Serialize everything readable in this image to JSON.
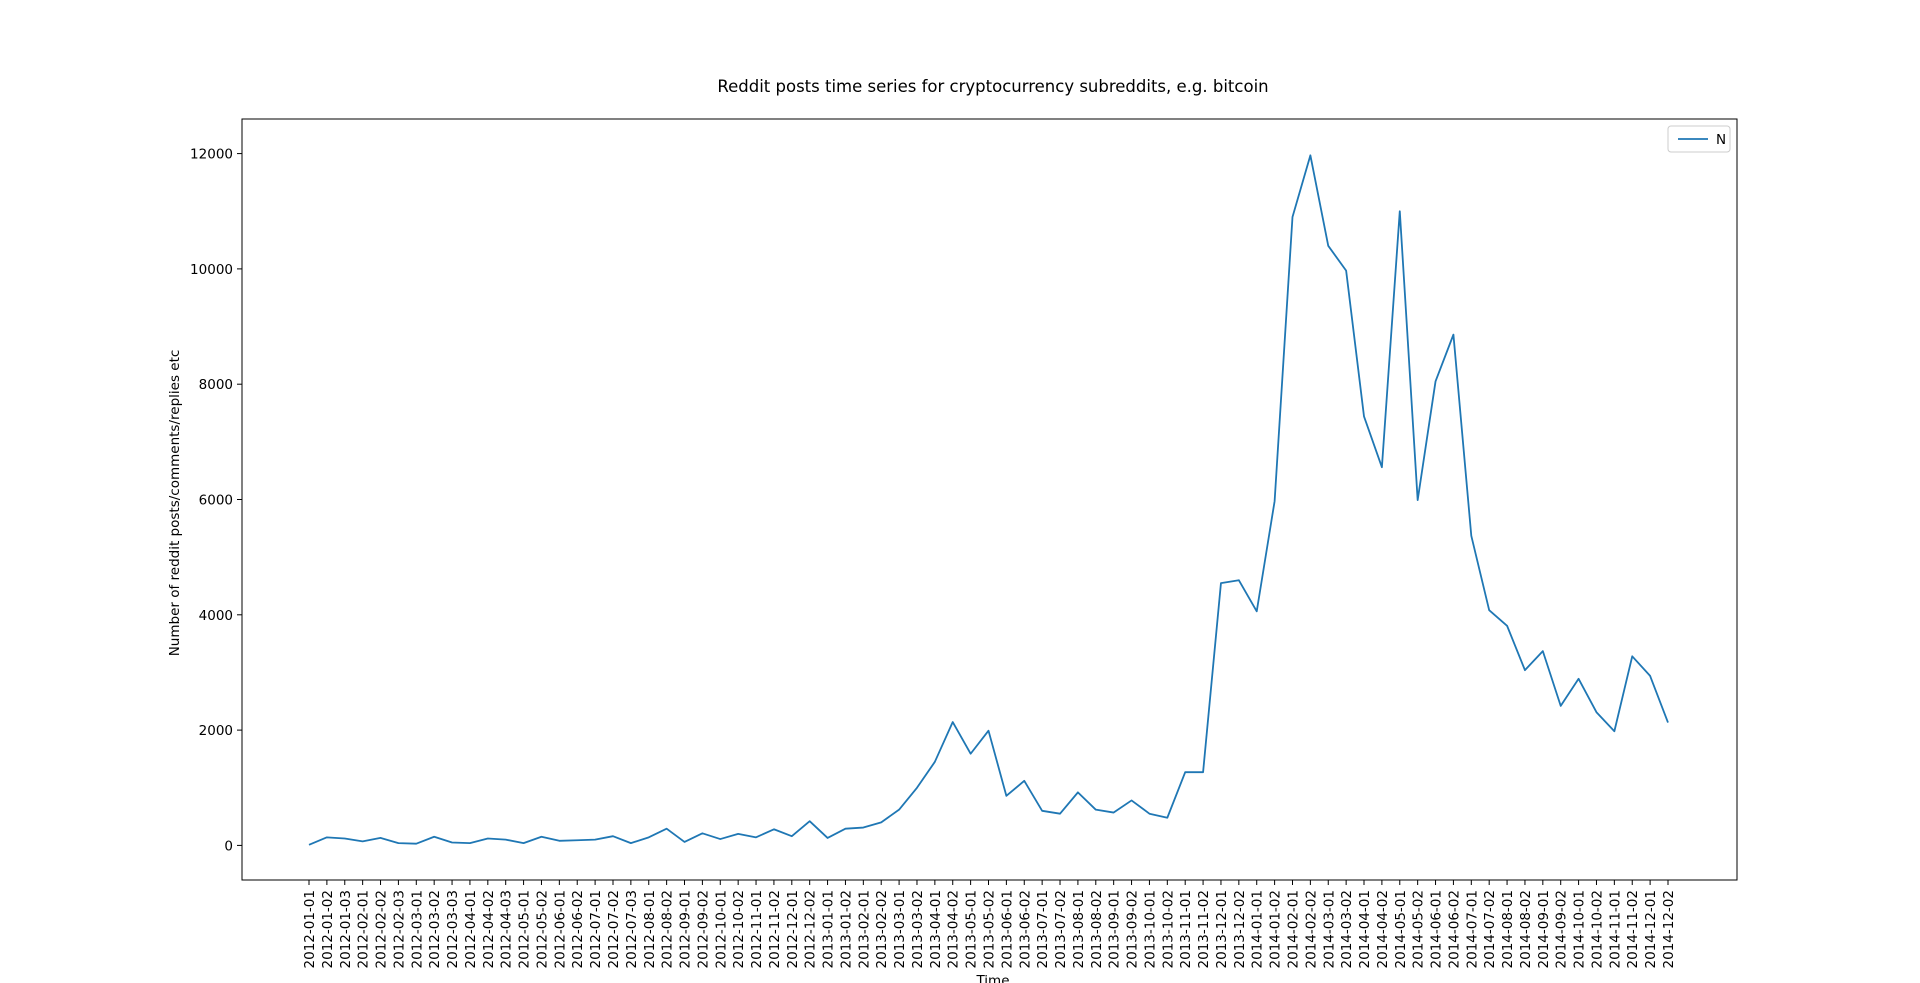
{
  "chart_data": {
    "type": "line",
    "title": "Reddit posts time series for cryptocurrency subreddits, e.g. bitcoin",
    "xlabel": "Time",
    "ylabel": "Number of reddit posts/comments/replies etc",
    "ylim": [
      -600,
      12600
    ],
    "yticks": [
      0,
      2000,
      4000,
      6000,
      8000,
      10000,
      12000
    ],
    "grid": false,
    "legend_position": "top-right",
    "line_color": "#1f77b4",
    "categories": [
      "2012-01-01",
      "2012-01-02",
      "2012-01-03",
      "2012-02-01",
      "2012-02-02",
      "2012-02-03",
      "2012-03-01",
      "2012-03-02",
      "2012-03-03",
      "2012-04-01",
      "2012-04-02",
      "2012-04-03",
      "2012-05-01",
      "2012-05-02",
      "2012-06-01",
      "2012-06-02",
      "2012-07-01",
      "2012-07-02",
      "2012-07-03",
      "2012-08-01",
      "2012-08-02",
      "2012-09-01",
      "2012-09-02",
      "2012-10-01",
      "2012-10-02",
      "2012-11-01",
      "2012-11-02",
      "2012-12-01",
      "2012-12-02",
      "2013-01-01",
      "2013-01-02",
      "2013-02-01",
      "2013-02-02",
      "2013-03-01",
      "2013-03-02",
      "2013-04-01",
      "2013-04-02",
      "2013-05-01",
      "2013-05-02",
      "2013-06-01",
      "2013-06-02",
      "2013-07-01",
      "2013-07-02",
      "2013-08-01",
      "2013-08-02",
      "2013-09-01",
      "2013-09-02",
      "2013-10-01",
      "2013-10-02",
      "2013-11-01",
      "2013-11-02",
      "2013-12-01",
      "2013-12-02",
      "2014-01-01",
      "2014-01-02",
      "2014-02-01",
      "2014-02-02",
      "2014-03-01",
      "2014-03-02",
      "2014-04-01",
      "2014-04-02",
      "2014-05-01",
      "2014-05-02",
      "2014-06-01",
      "2014-06-02",
      "2014-07-01",
      "2014-07-02",
      "2014-08-01",
      "2014-08-02",
      "2014-09-01",
      "2014-09-02",
      "2014-10-01",
      "2014-10-02",
      "2014-11-01",
      "2014-11-02",
      "2014-12-01",
      "2014-12-02"
    ],
    "series": [
      {
        "name": "N",
        "values": [
          10,
          140,
          120,
          70,
          130,
          40,
          30,
          150,
          50,
          40,
          120,
          100,
          40,
          150,
          80,
          90,
          100,
          160,
          40,
          140,
          290,
          60,
          210,
          110,
          200,
          140,
          280,
          160,
          420,
          130,
          290,
          310,
          400,
          620,
          1000,
          1450,
          2140,
          1590,
          1990,
          860,
          1120,
          600,
          550,
          920,
          620,
          570,
          780,
          550,
          480,
          1270,
          1270,
          4550,
          4600,
          4060,
          5970,
          10900,
          11970,
          10400,
          9970,
          7440,
          6560,
          11000,
          5990,
          8050,
          8860,
          5370,
          4080,
          3810,
          3040,
          3370,
          2420,
          2890,
          2310,
          1980,
          3280,
          2940,
          2130
        ]
      }
    ]
  }
}
